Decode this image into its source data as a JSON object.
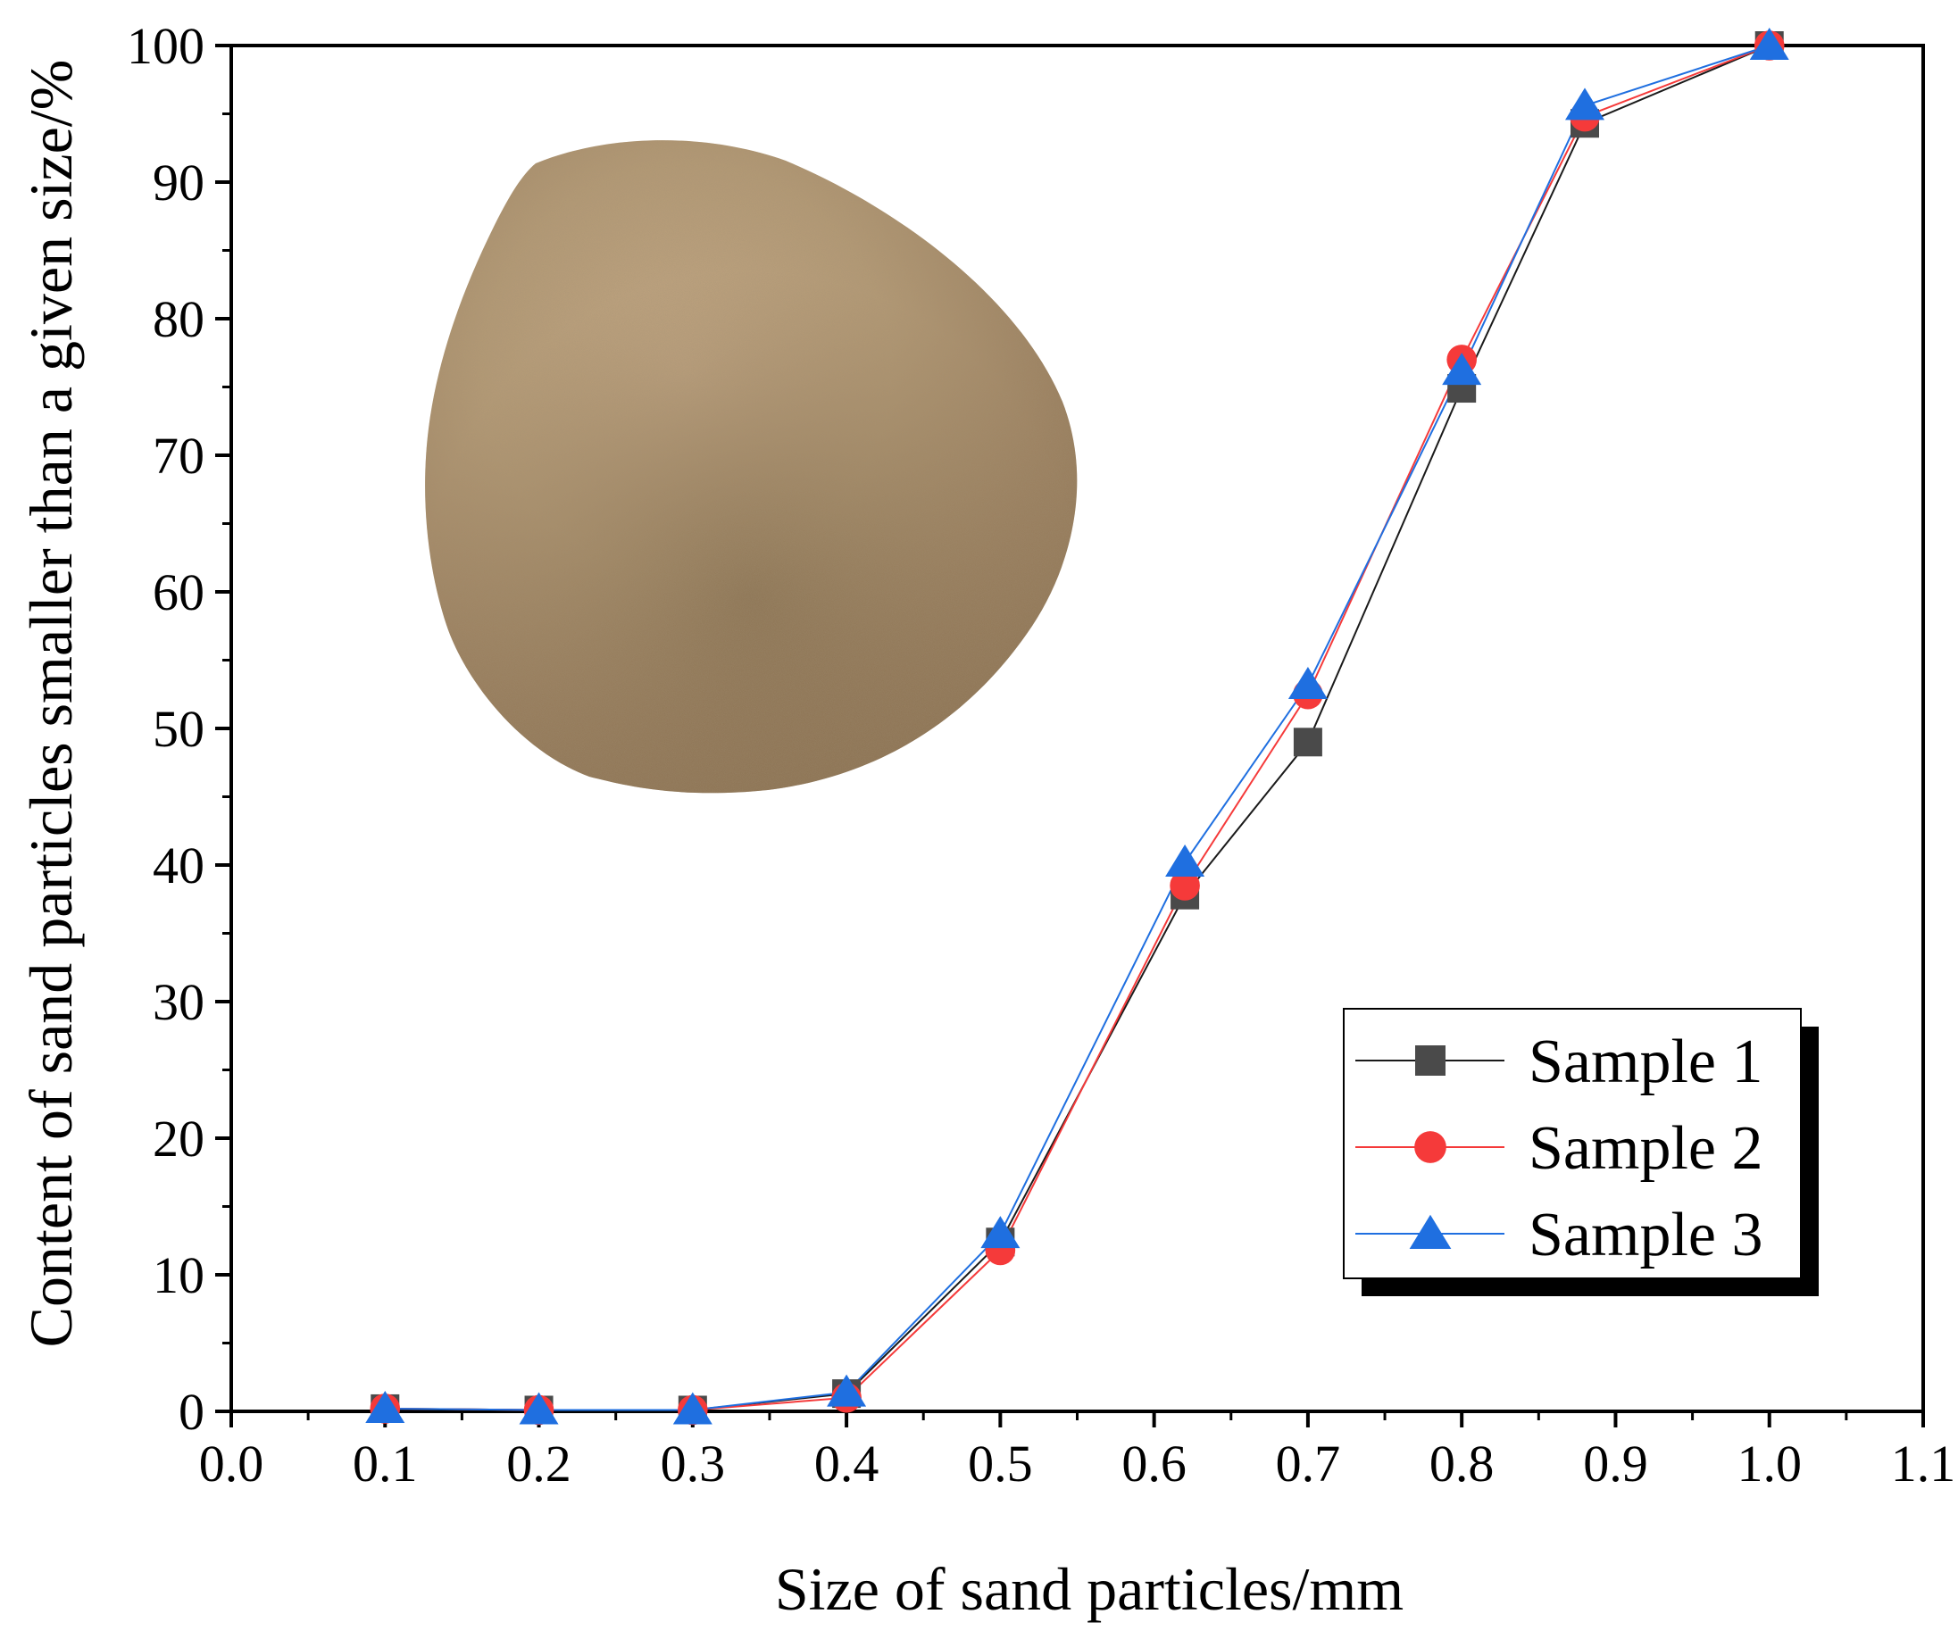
{
  "chart_data": {
    "type": "line",
    "title": "",
    "xlabel": "Size of sand particles/mm",
    "ylabel": "Content of sand particles smaller than a given size/%",
    "xlim": [
      0.0,
      1.1
    ],
    "ylim": [
      0,
      100
    ],
    "xticks": [
      "0.0",
      "0.1",
      "0.2",
      "0.3",
      "0.4",
      "0.5",
      "0.6",
      "0.7",
      "0.8",
      "0.9",
      "1.0",
      "1.1"
    ],
    "yticks": [
      "0",
      "10",
      "20",
      "30",
      "40",
      "50",
      "60",
      "70",
      "80",
      "90",
      "100"
    ],
    "grid": false,
    "legend_position": "bottom-right",
    "x": [
      0.1,
      0.2,
      0.3,
      0.4,
      0.5,
      0.62,
      0.7,
      0.8,
      0.88,
      1.0
    ],
    "series": [
      {
        "name": "Sample 1",
        "marker": "square",
        "color": "#4a4a4a",
        "line_color": "#1a1a1a",
        "values": [
          0.2,
          0.1,
          0.1,
          1.3,
          12.4,
          37.8,
          49.0,
          74.9,
          94.3,
          100.0
        ]
      },
      {
        "name": "Sample 2",
        "marker": "circle",
        "color": "#f53a3a",
        "line_color": "#f53a3a",
        "values": [
          0.2,
          0.1,
          0.1,
          1.0,
          11.8,
          38.5,
          52.5,
          77.0,
          94.8,
          100.0
        ]
      },
      {
        "name": "Sample 3",
        "marker": "triangle",
        "color": "#1f6fe0",
        "line_color": "#1f6fe0",
        "values": [
          0.2,
          0.1,
          0.1,
          1.4,
          13.0,
          40.2,
          53.2,
          76.2,
          95.6,
          100.0
        ]
      }
    ],
    "inset_image": "sand-pile-photo"
  }
}
